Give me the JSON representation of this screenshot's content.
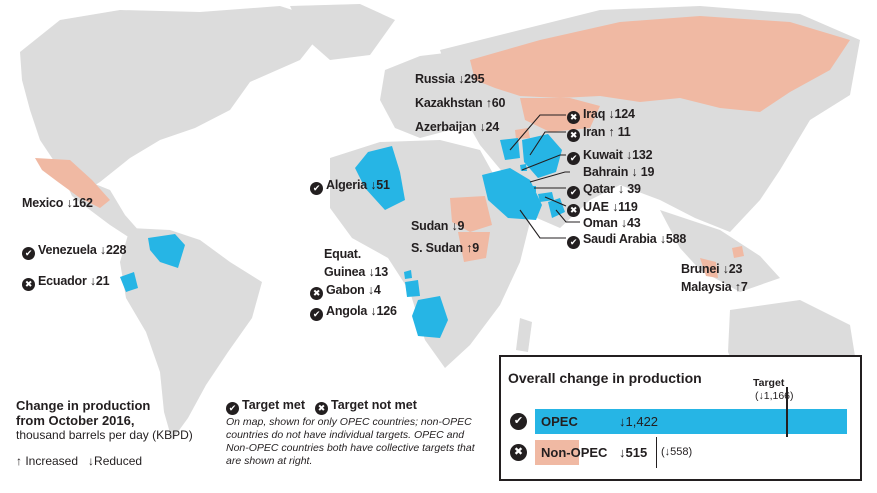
{
  "colors": {
    "land": "#dcdcdc",
    "opec": "#26b5e5",
    "non_opec": "#f0b9a3",
    "text": "#231f20"
  },
  "icons": {
    "met": "check-circle-icon",
    "not_met": "x-circle-icon"
  },
  "countries": {
    "russia": "Russia ↓295",
    "kazakhstan": "Kazakhstan ↑60",
    "azerbaijan": "Azerbaijan ↓24",
    "iraq": "Iraq ↓124",
    "iran": "Iran ↑ 11",
    "kuwait": "Kuwait ↓132",
    "bahrain": "Bahrain ↓ 19",
    "qatar": "Qatar ↓ 39",
    "uae": "UAE ↓119",
    "oman": "Oman ↓43",
    "saudi": "Saudi Arabia ↓588",
    "algeria": "Algeria ↓51",
    "sudan": "Sudan ↓9",
    "s_sudan": "S. Sudan ↑9",
    "eq_guinea_1": "Equat.",
    "eq_guinea_2": "Guinea ↓13",
    "gabon": "Gabon ↓4",
    "angola": "Angola ↓126",
    "mexico": "Mexico ↓162",
    "venezuela": "Venezuela ↓228",
    "ecuador": "Ecuador ↓21",
    "brunei": "Brunei ↓23",
    "malaysia": "Malaysia ↑7"
  },
  "legend": {
    "title_1": "Change in production",
    "title_2": "from October 2016,",
    "subtitle": "thousand barrels per day (KBPD)",
    "increased": "↑ Increased",
    "reduced": "↓Reduced",
    "target_met": "Target met",
    "target_not_met": "Target not met",
    "note": "On map, shown for only OPEC countries; non-OPEC countries do not have individual targets. OPEC and Non-OPEC countries both have collective targets that are shown at right."
  },
  "overall": {
    "title": "Overall change in production",
    "target_label": "Target",
    "target_value": "(↓1,166)",
    "opec_label": "OPEC",
    "opec_value": "↓1,422",
    "opec_change": 1422,
    "opec_target": 1166,
    "non_opec_label": "Non-OPEC",
    "non_opec_value": "↓515",
    "non_opec_change": 515,
    "non_opec_target": 558,
    "non_opec_target_label": "(↓558)"
  }
}
